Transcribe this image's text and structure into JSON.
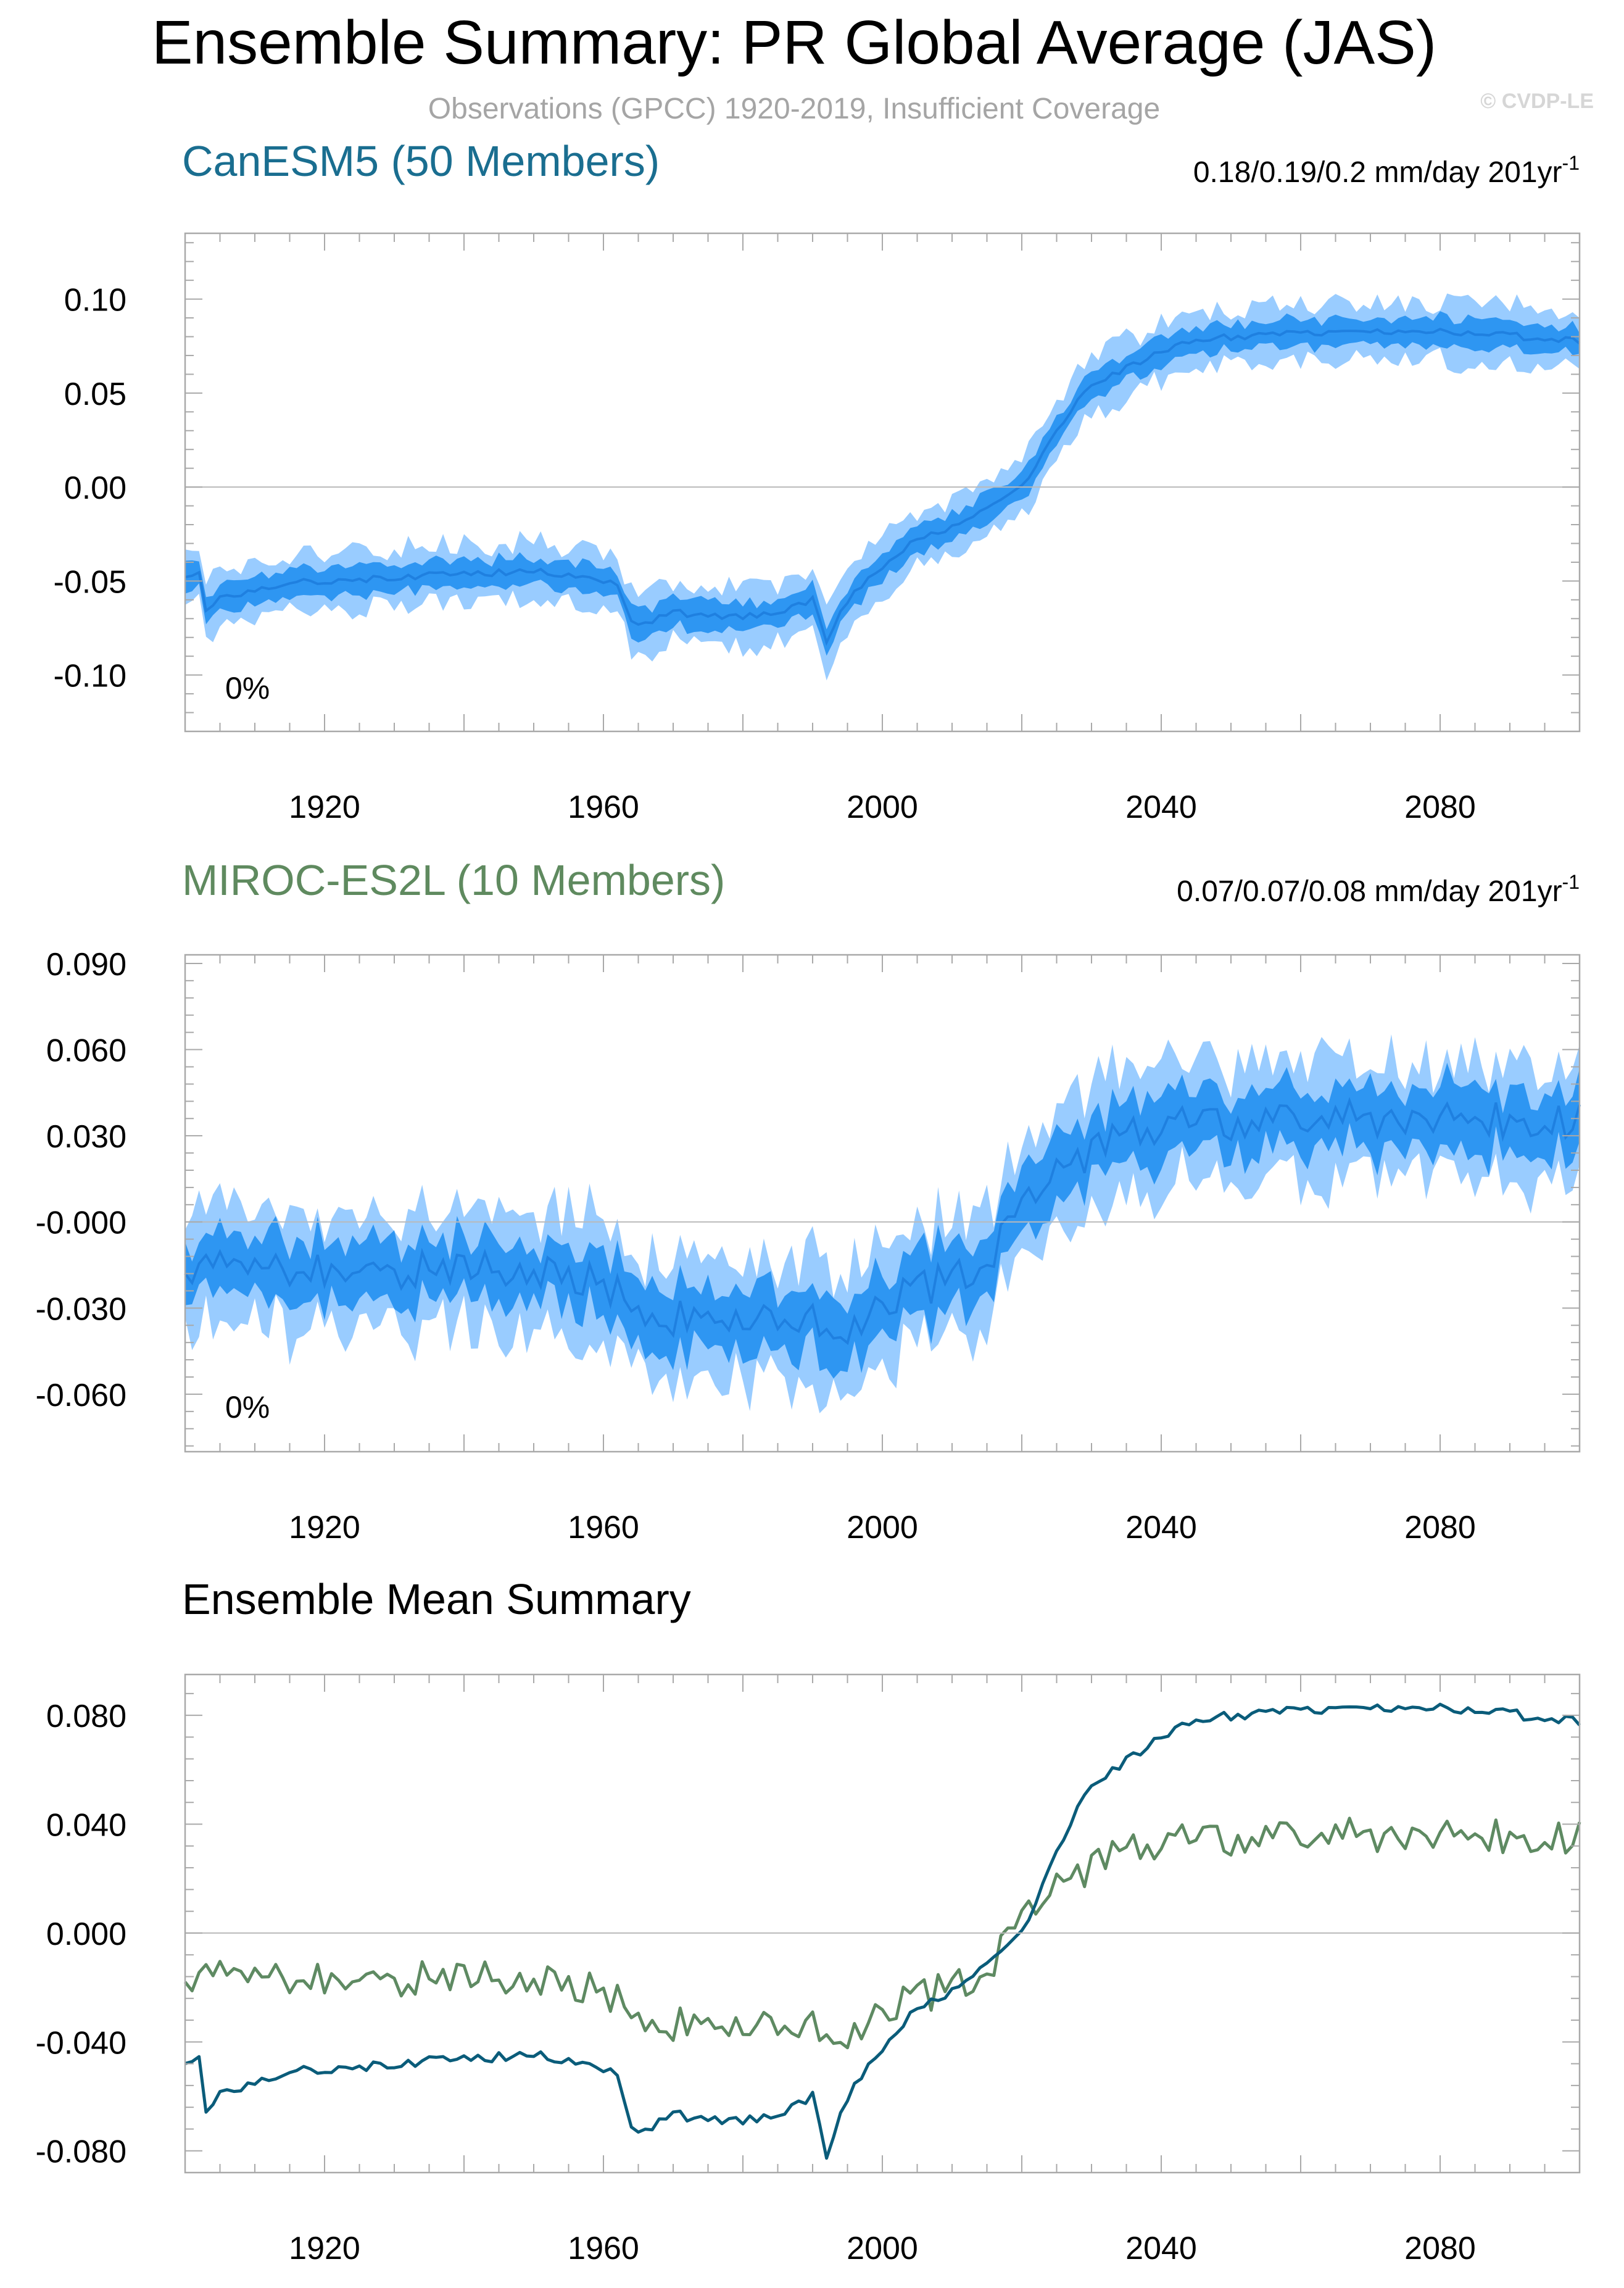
{
  "header": {
    "title": "Ensemble Summary: PR Global Average (JAS)",
    "subtitle": "Observations (GPCC) 1920-2019, Insufficient Coverage",
    "watermark": "© CVDP-LE"
  },
  "colors": {
    "canesm_title": "#1a6e90",
    "miroc_title": "#5f8a5f",
    "band_outer": "#99ccff",
    "band_inner": "#2e96f2",
    "ens_mean_band": "#1f80e0",
    "canesm_line": "#0a5c7a",
    "miroc_line": "#5e8a62",
    "frame": "#a9a9a9",
    "zero_line": "#b9b9b9"
  },
  "chart_data": [
    {
      "type": "area",
      "title": "CanESM5 (50 Members)",
      "trend_label": "0.18/0.19/0.2 mm/day 201yr",
      "trend_sup": "-1",
      "percent_label": "0%",
      "xlim": [
        1900,
        2100
      ],
      "ylim": [
        -0.13,
        0.135
      ],
      "yticks": [
        0.1,
        0.05,
        0.0,
        -0.05,
        -0.1
      ],
      "ytick_labels": [
        "0.10",
        "0.05",
        "0.00",
        "-0.05",
        "-0.10"
      ],
      "xticks": [
        1920,
        1960,
        2000,
        2040,
        2080
      ],
      "xtick_labels": [
        "1920",
        "1960",
        "2000",
        "2040",
        "2080"
      ],
      "mean_anchors": [
        [
          1900,
          -0.047
        ],
        [
          1902,
          -0.046
        ],
        [
          1903,
          -0.066
        ],
        [
          1905,
          -0.058
        ],
        [
          1910,
          -0.055
        ],
        [
          1915,
          -0.05
        ],
        [
          1920,
          -0.05
        ],
        [
          1930,
          -0.048
        ],
        [
          1940,
          -0.046
        ],
        [
          1950,
          -0.045
        ],
        [
          1958,
          -0.047
        ],
        [
          1962,
          -0.052
        ],
        [
          1964,
          -0.071
        ],
        [
          1966,
          -0.073
        ],
        [
          1970,
          -0.067
        ],
        [
          1975,
          -0.068
        ],
        [
          1980,
          -0.069
        ],
        [
          1985,
          -0.066
        ],
        [
          1990,
          -0.06
        ],
        [
          1992,
          -0.083
        ],
        [
          1994,
          -0.065
        ],
        [
          1998,
          -0.049
        ],
        [
          2000,
          -0.042
        ],
        [
          2005,
          -0.028
        ],
        [
          2010,
          -0.022
        ],
        [
          2015,
          -0.012
        ],
        [
          2020,
          0.0
        ],
        [
          2025,
          0.03
        ],
        [
          2030,
          0.055
        ],
        [
          2035,
          0.063
        ],
        [
          2040,
          0.072
        ],
        [
          2045,
          0.078
        ],
        [
          2050,
          0.08
        ],
        [
          2060,
          0.082
        ],
        [
          2070,
          0.083
        ],
        [
          2080,
          0.083
        ],
        [
          2090,
          0.081
        ],
        [
          2095,
          0.078
        ],
        [
          2100,
          0.078
        ]
      ],
      "inner_spread": 0.008,
      "outer_spread": 0.016,
      "noise": 0.0018
    },
    {
      "type": "area",
      "title": "MIROC-ES2L (10 Members)",
      "trend_label": "0.07/0.07/0.08 mm/day 201yr",
      "trend_sup": "-1",
      "percent_label": "0%",
      "xlim": [
        1900,
        2100
      ],
      "ylim": [
        -0.08,
        0.093
      ],
      "yticks": [
        0.09,
        0.06,
        0.03,
        0.0,
        -0.03,
        -0.06
      ],
      "ytick_labels": [
        "0.090",
        "0.060",
        "0.030",
        "-0.000",
        "-0.030",
        "-0.060"
      ],
      "xticks": [
        1920,
        1960,
        2000,
        2040,
        2080
      ],
      "xtick_labels": [
        "1920",
        "1960",
        "2000",
        "2040",
        "2080"
      ],
      "mean_anchors": [
        [
          1900,
          -0.015
        ],
        [
          1910,
          -0.017
        ],
        [
          1920,
          -0.016
        ],
        [
          1930,
          -0.017
        ],
        [
          1940,
          -0.016
        ],
        [
          1950,
          -0.018
        ],
        [
          1958,
          -0.02
        ],
        [
          1962,
          -0.024
        ],
        [
          1966,
          -0.032
        ],
        [
          1970,
          -0.033
        ],
        [
          1980,
          -0.033
        ],
        [
          1990,
          -0.033
        ],
        [
          1995,
          -0.036
        ],
        [
          2000,
          -0.028
        ],
        [
          2010,
          -0.02
        ],
        [
          2016,
          -0.01
        ],
        [
          2020,
          0.004
        ],
        [
          2025,
          0.017
        ],
        [
          2030,
          0.024
        ],
        [
          2035,
          0.031
        ],
        [
          2040,
          0.033
        ],
        [
          2050,
          0.034
        ],
        [
          2060,
          0.035
        ],
        [
          2070,
          0.036
        ],
        [
          2080,
          0.036
        ],
        [
          2090,
          0.035
        ],
        [
          2100,
          0.036
        ]
      ],
      "inner_spread": 0.012,
      "outer_spread": 0.022,
      "noise": 0.0065
    },
    {
      "type": "line",
      "title": "Ensemble Mean Summary",
      "xlim": [
        1900,
        2100
      ],
      "ylim": [
        -0.088,
        0.095
      ],
      "yticks": [
        0.08,
        0.04,
        0.0,
        -0.04,
        -0.08
      ],
      "ytick_labels": [
        "0.080",
        "0.040",
        "0.000",
        "-0.040",
        "-0.080"
      ],
      "xticks": [
        1920,
        1960,
        2000,
        2040,
        2080
      ],
      "xtick_labels": [
        "1920",
        "1960",
        "2000",
        "2040",
        "2080"
      ],
      "series": [
        {
          "name": "CanESM5",
          "source": 0,
          "noise_scale": 1.0
        },
        {
          "name": "MIROC-ES2L",
          "source": 1,
          "noise_scale": 1.0
        }
      ]
    }
  ]
}
